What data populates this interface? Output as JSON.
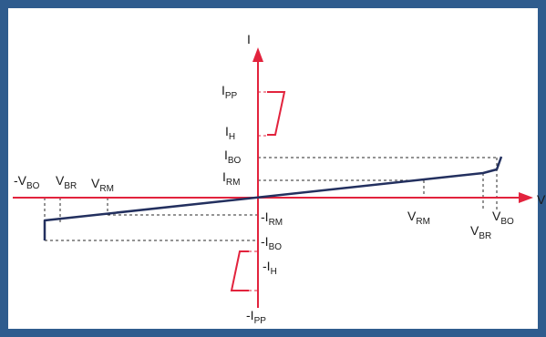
{
  "colors": {
    "frame": "#2f5c8e",
    "axis": "#e2233d",
    "curve": "#23305f",
    "guide": "#2a2a2a",
    "text": "#1a1a1a"
  },
  "axes": {
    "y_label": "I",
    "x_label": "V"
  },
  "labels": {
    "ipp": {
      "main": "I",
      "sub": "PP"
    },
    "ih": {
      "main": "I",
      "sub": "H"
    },
    "ibo": {
      "main": "I",
      "sub": "BO"
    },
    "irm": {
      "main": "I",
      "sub": "RM"
    },
    "neg_irm": {
      "main": "-I",
      "sub": "RM"
    },
    "neg_ibo": {
      "main": "-I",
      "sub": "BO"
    },
    "neg_ih": {
      "main": "-I",
      "sub": "H"
    },
    "neg_ipp": {
      "main": "-I",
      "sub": "PP"
    },
    "neg_vbo": {
      "main": "-V",
      "sub": "BO"
    },
    "neg_vbr": {
      "main": "V",
      "sub": "BR"
    },
    "neg_vrm": {
      "main": "V",
      "sub": "RM"
    },
    "vrm": {
      "main": "V",
      "sub": "RM"
    },
    "vbr": {
      "main": "V",
      "sub": "BR"
    },
    "vbo": {
      "main": "V",
      "sub": "BO"
    }
  }
}
